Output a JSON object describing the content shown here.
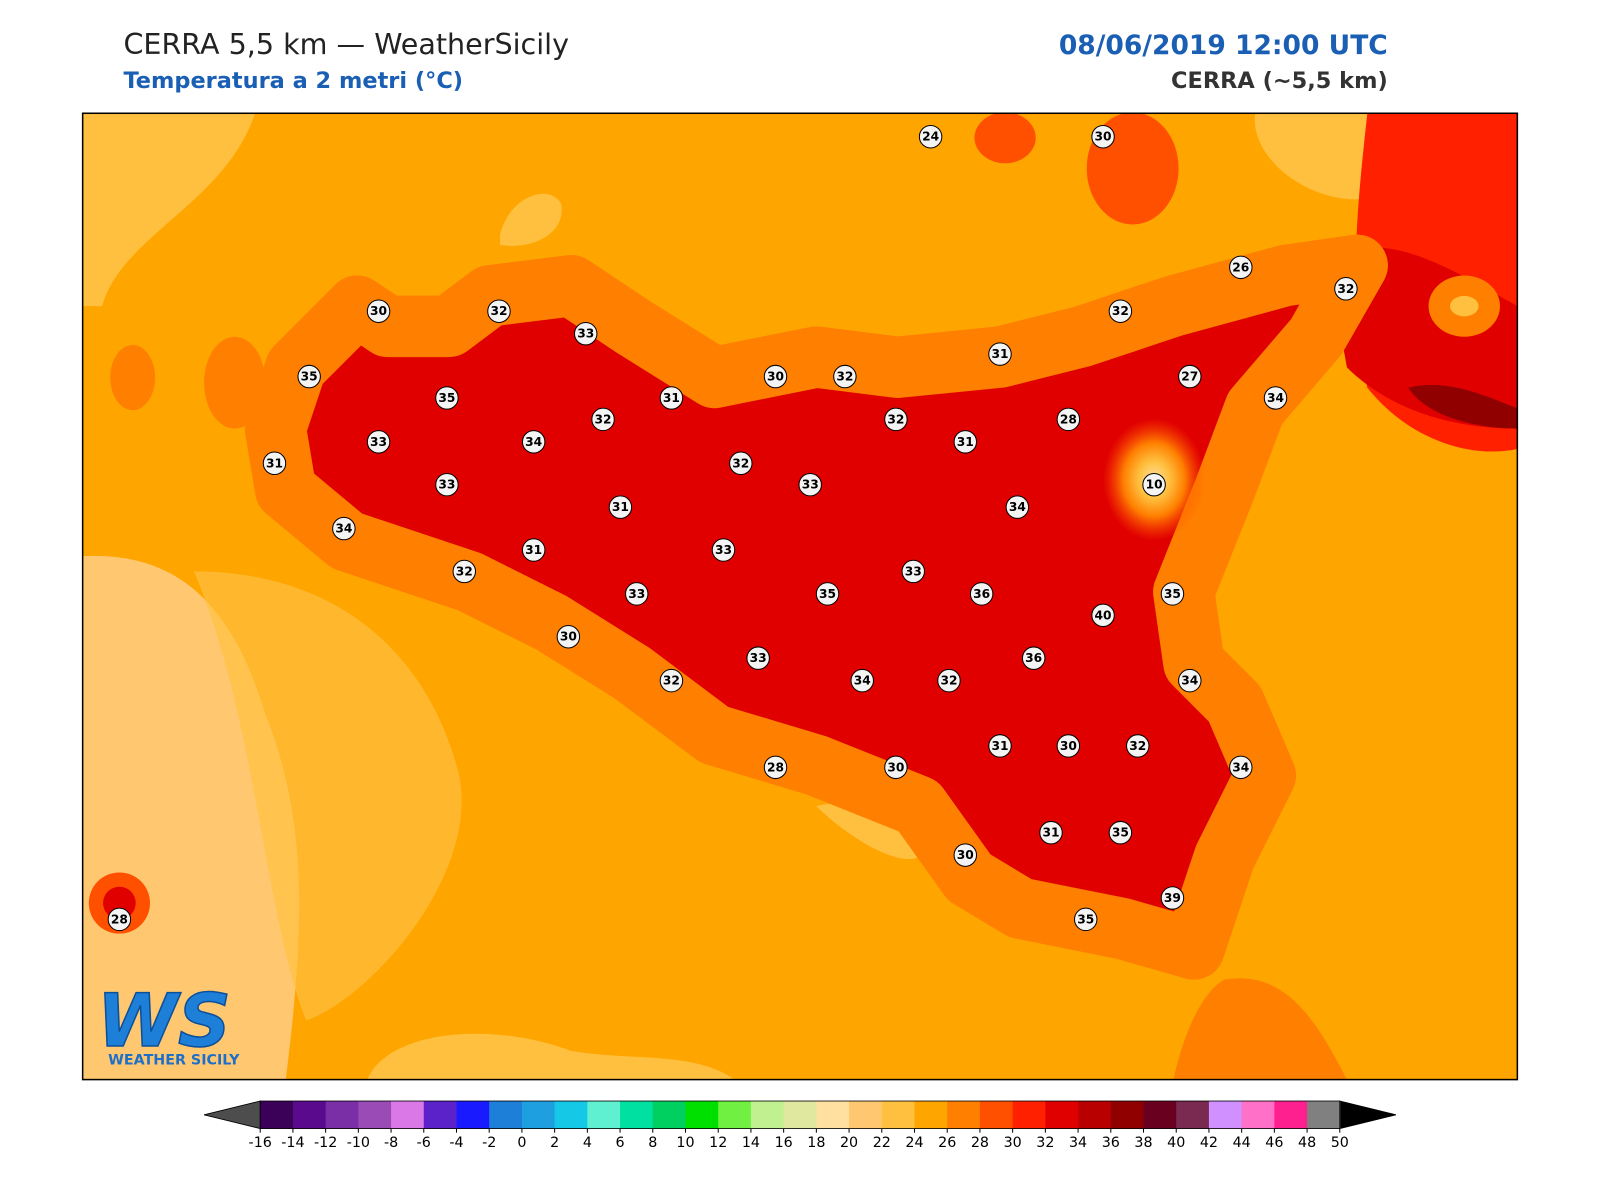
{
  "header": {
    "title": "CERRA 5,5 km — WeatherSicily",
    "subtitle": "Temperatura a 2 metri (°C)",
    "datetime": "08/06/2019 12:00 UTC",
    "model": "CERRA (~5,5 km)"
  },
  "logo": {
    "mark": "WS",
    "name": "WEATHER SICILY"
  },
  "stations": [
    24,
    30,
    26,
    32,
    32,
    30,
    32,
    33,
    31,
    27,
    35,
    30,
    32,
    35,
    31,
    34,
    32,
    32,
    28,
    33,
    34,
    31,
    31,
    32,
    10,
    33,
    33,
    31,
    34,
    34,
    31,
    33,
    32,
    33,
    33,
    35,
    36,
    35,
    40,
    30,
    33,
    36,
    32,
    34,
    32,
    34,
    31,
    30,
    32,
    28,
    30,
    34,
    30,
    31,
    35,
    39,
    35,
    28
  ],
  "colorbar": {
    "ticks": [
      -16,
      -14,
      -12,
      -10,
      -8,
      -6,
      -4,
      -2,
      0,
      2,
      4,
      6,
      8,
      10,
      12,
      14,
      16,
      18,
      20,
      22,
      24,
      26,
      28,
      30,
      32,
      34,
      36,
      38,
      40,
      42,
      44,
      46,
      48,
      50
    ],
    "colors": [
      "#3b0057",
      "#5a0a8c",
      "#7b2fa6",
      "#9a4bb5",
      "#d978e6",
      "#5a22c8",
      "#1a1aff",
      "#1e7fd8",
      "#1e9fe0",
      "#15c8e6",
      "#5ef0d0",
      "#00e0a0",
      "#00d060",
      "#00e000",
      "#70f040",
      "#c0f090",
      "#e0e8a0",
      "#ffe0a0",
      "#ffc870",
      "#ffc040",
      "#ffa500",
      "#ff8000",
      "#ff5000",
      "#ff2000",
      "#e00000",
      "#b80000",
      "#900000",
      "#6a0020",
      "#7a2a50",
      "#d090ff",
      "#ff70c8",
      "#ff2090",
      "#808080",
      "#333333"
    ],
    "under_color": "#4d4d4d",
    "over_color": "#000000"
  }
}
